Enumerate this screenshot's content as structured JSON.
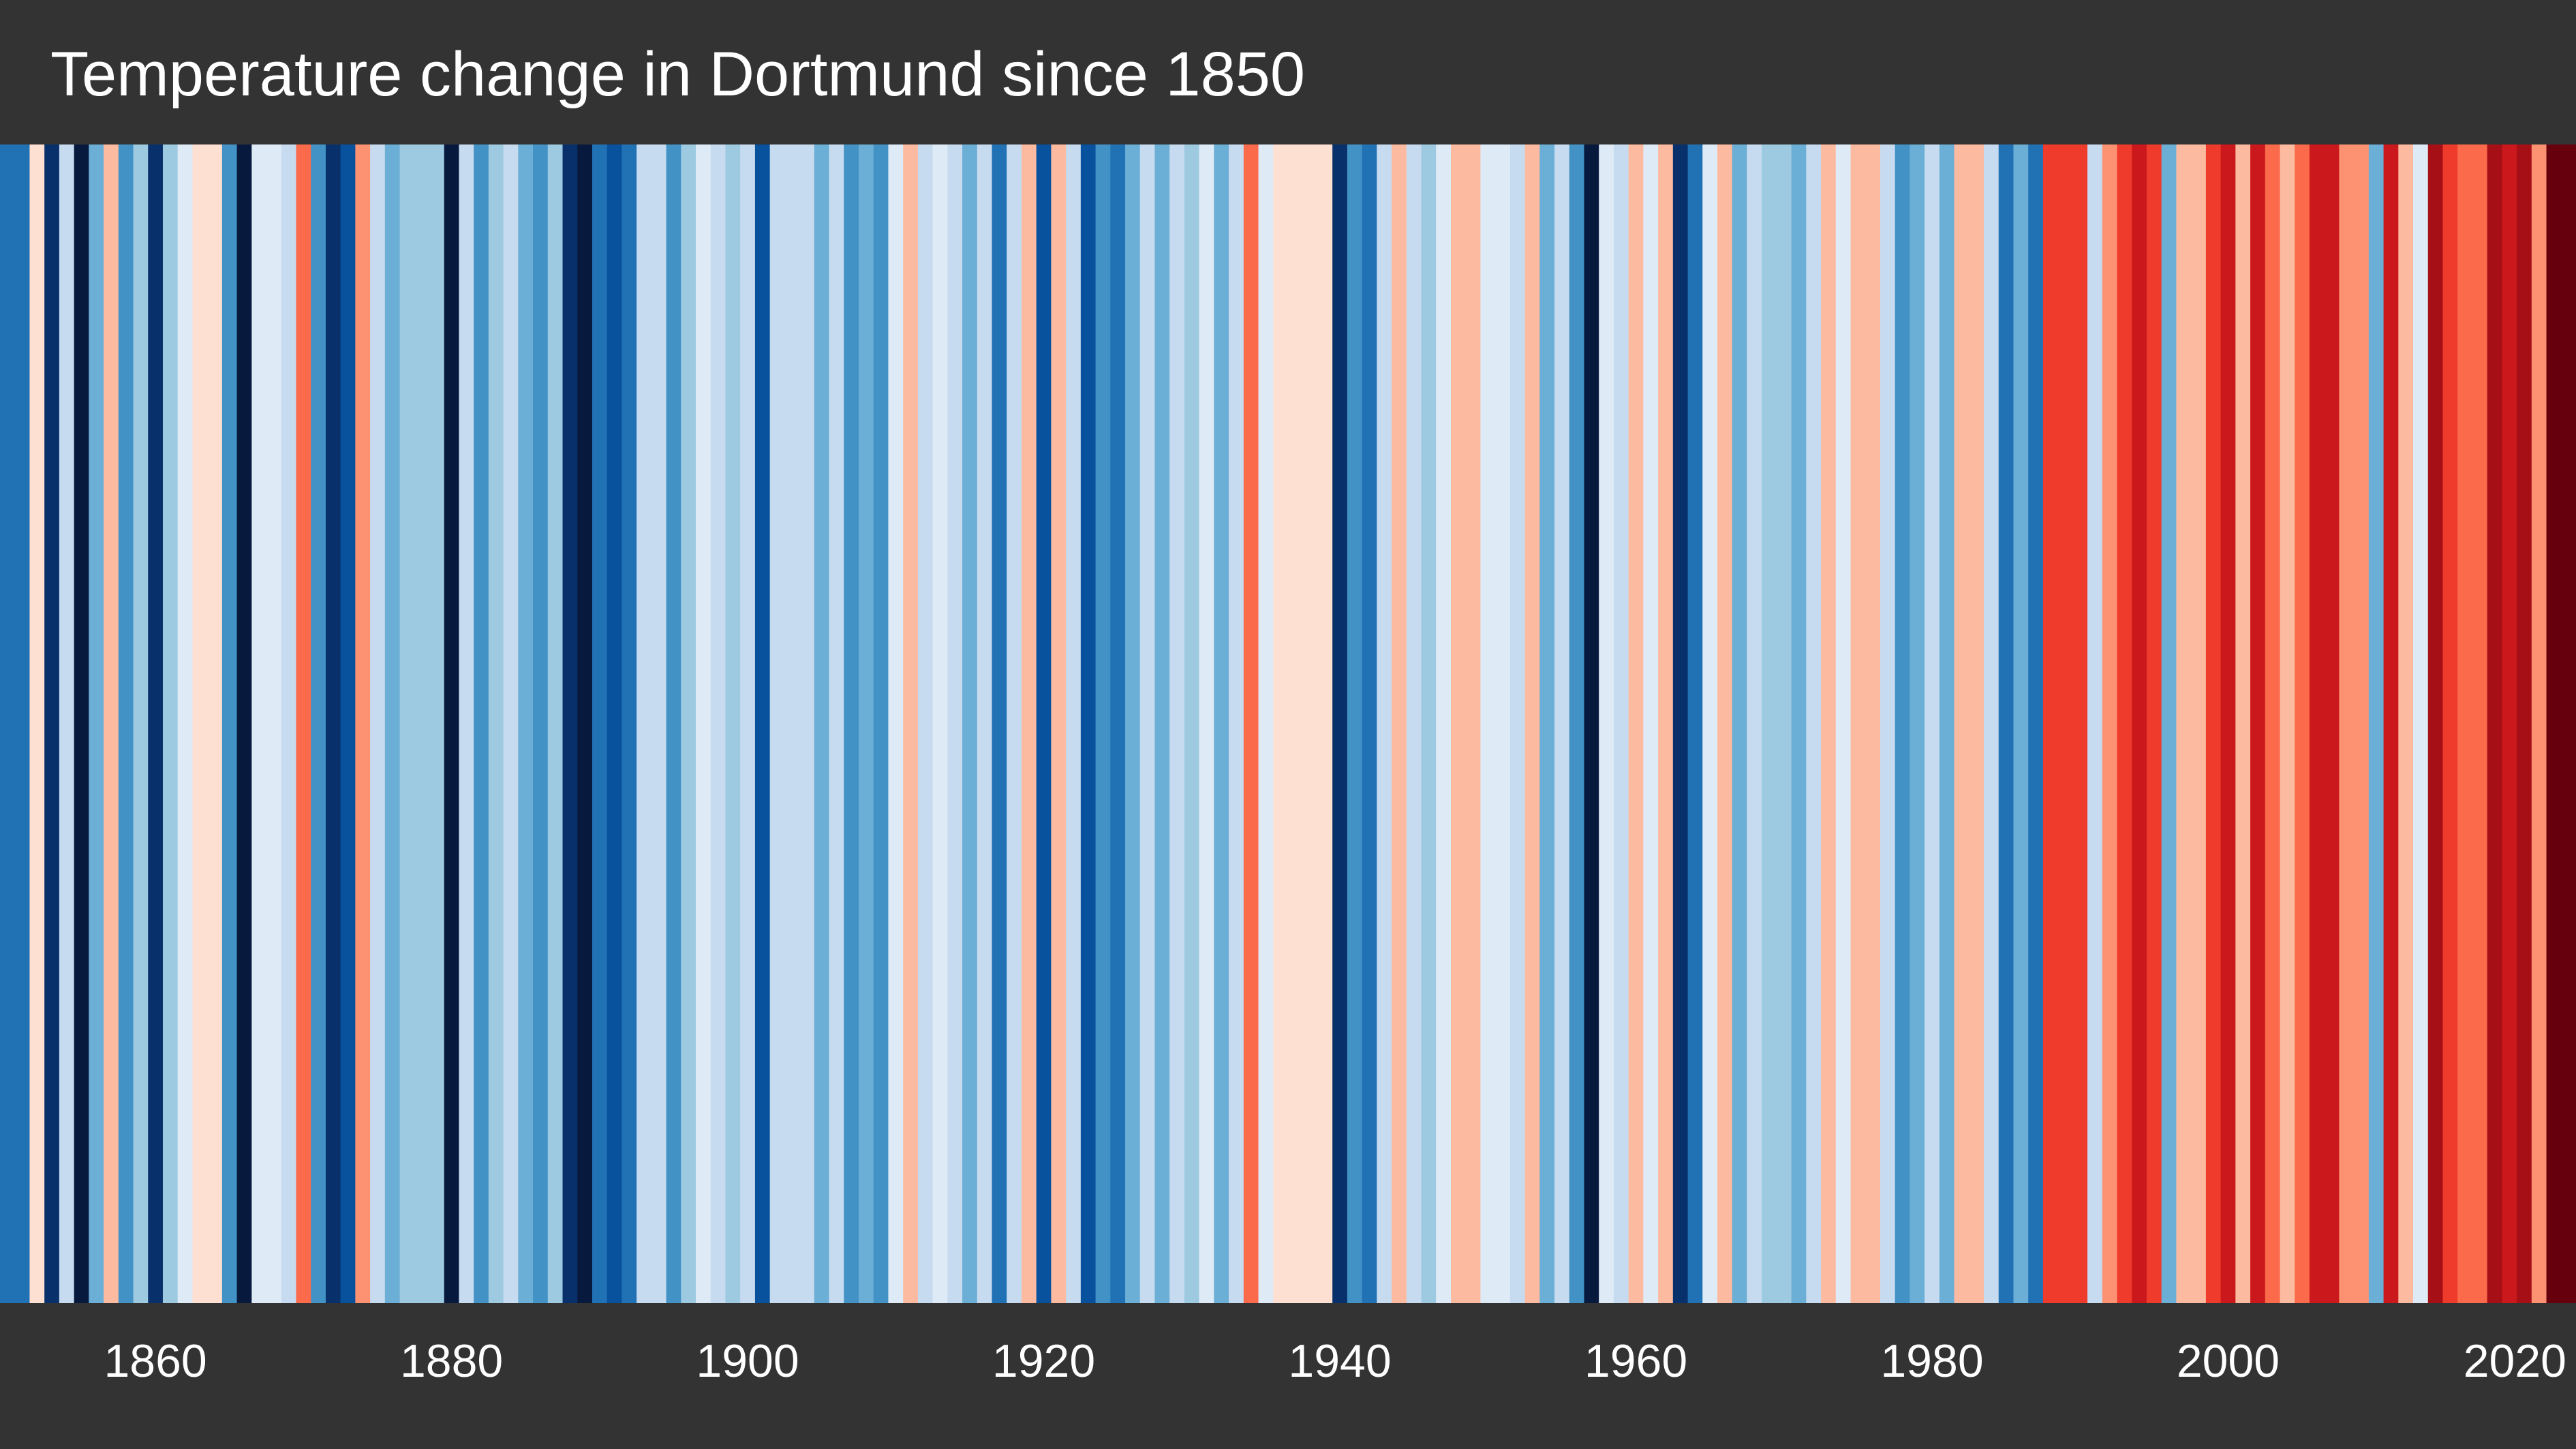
{
  "chart_data": {
    "type": "heatmap",
    "title": "Temperature change in Dortmund since 1850",
    "xlabel": "",
    "ylabel": "",
    "x_range": [
      1850,
      2023
    ],
    "grid": false,
    "legend": "none",
    "colors": {
      "background": "#333333",
      "title_text": "#ffffff",
      "tick_text": "#ffffff"
    },
    "ticks": [
      "1860",
      "1880",
      "1900",
      "1920",
      "1940",
      "1960",
      "1980",
      "2000",
      "2020"
    ],
    "stripes": [
      {
        "year": 1850,
        "color": "#2171b5"
      },
      {
        "year": 1851,
        "color": "#2171b5"
      },
      {
        "year": 1852,
        "color": "#fee0d2"
      },
      {
        "year": 1853,
        "color": "#08306b"
      },
      {
        "year": 1854,
        "color": "#c6dbef"
      },
      {
        "year": 1855,
        "color": "#08193e"
      },
      {
        "year": 1856,
        "color": "#6baed6"
      },
      {
        "year": 1857,
        "color": "#fcbba1"
      },
      {
        "year": 1858,
        "color": "#4292c6"
      },
      {
        "year": 1859,
        "color": "#9ecae1"
      },
      {
        "year": 1860,
        "color": "#08306b"
      },
      {
        "year": 1861,
        "color": "#9ecae1"
      },
      {
        "year": 1862,
        "color": "#deebf7"
      },
      {
        "year": 1863,
        "color": "#fee0d2"
      },
      {
        "year": 1864,
        "color": "#fee0d2"
      },
      {
        "year": 1865,
        "color": "#4292c6"
      },
      {
        "year": 1866,
        "color": "#08193e"
      },
      {
        "year": 1867,
        "color": "#deebf7"
      },
      {
        "year": 1868,
        "color": "#deebf7"
      },
      {
        "year": 1869,
        "color": "#c6dbef"
      },
      {
        "year": 1870,
        "color": "#fb6a4a"
      },
      {
        "year": 1871,
        "color": "#4292c6"
      },
      {
        "year": 1872,
        "color": "#08306b"
      },
      {
        "year": 1873,
        "color": "#08519c"
      },
      {
        "year": 1874,
        "color": "#fc9272"
      },
      {
        "year": 1875,
        "color": "#c6dbef"
      },
      {
        "year": 1876,
        "color": "#6baed6"
      },
      {
        "year": 1877,
        "color": "#9ecae1"
      },
      {
        "year": 1878,
        "color": "#9ecae1"
      },
      {
        "year": 1879,
        "color": "#9ecae1"
      },
      {
        "year": 1880,
        "color": "#08193e"
      },
      {
        "year": 1881,
        "color": "#c6dbef"
      },
      {
        "year": 1882,
        "color": "#4292c6"
      },
      {
        "year": 1883,
        "color": "#9ecae1"
      },
      {
        "year": 1884,
        "color": "#c6dbef"
      },
      {
        "year": 1885,
        "color": "#6baed6"
      },
      {
        "year": 1886,
        "color": "#4292c6"
      },
      {
        "year": 1887,
        "color": "#9ecae1"
      },
      {
        "year": 1888,
        "color": "#08306b"
      },
      {
        "year": 1889,
        "color": "#08193e"
      },
      {
        "year": 1890,
        "color": "#2171b5"
      },
      {
        "year": 1891,
        "color": "#08519c"
      },
      {
        "year": 1892,
        "color": "#2171b5"
      },
      {
        "year": 1893,
        "color": "#c6dbef"
      },
      {
        "year": 1894,
        "color": "#c6dbef"
      },
      {
        "year": 1895,
        "color": "#4292c6"
      },
      {
        "year": 1896,
        "color": "#9ecae1"
      },
      {
        "year": 1897,
        "color": "#deebf7"
      },
      {
        "year": 1898,
        "color": "#c6dbef"
      },
      {
        "year": 1899,
        "color": "#9ecae1"
      },
      {
        "year": 1900,
        "color": "#c6dbef"
      },
      {
        "year": 1901,
        "color": "#08519c"
      },
      {
        "year": 1902,
        "color": "#c6dbef"
      },
      {
        "year": 1903,
        "color": "#c6dbef"
      },
      {
        "year": 1904,
        "color": "#c6dbef"
      },
      {
        "year": 1905,
        "color": "#6baed6"
      },
      {
        "year": 1906,
        "color": "#c6dbef"
      },
      {
        "year": 1907,
        "color": "#4292c6"
      },
      {
        "year": 1908,
        "color": "#6baed6"
      },
      {
        "year": 1909,
        "color": "#4292c6"
      },
      {
        "year": 1910,
        "color": "#deebf7"
      },
      {
        "year": 1911,
        "color": "#fcbba1"
      },
      {
        "year": 1912,
        "color": "#c6dbef"
      },
      {
        "year": 1913,
        "color": "#deebf7"
      },
      {
        "year": 1914,
        "color": "#c6dbef"
      },
      {
        "year": 1915,
        "color": "#6baed6"
      },
      {
        "year": 1916,
        "color": "#c6dbef"
      },
      {
        "year": 1917,
        "color": "#2171b5"
      },
      {
        "year": 1918,
        "color": "#c6dbef"
      },
      {
        "year": 1919,
        "color": "#fcbba1"
      },
      {
        "year": 1920,
        "color": "#08519c"
      },
      {
        "year": 1921,
        "color": "#fcbba1"
      },
      {
        "year": 1922,
        "color": "#c6dbef"
      },
      {
        "year": 1923,
        "color": "#08519c"
      },
      {
        "year": 1924,
        "color": "#4292c6"
      },
      {
        "year": 1925,
        "color": "#2171b5"
      },
      {
        "year": 1926,
        "color": "#6baed6"
      },
      {
        "year": 1927,
        "color": "#c6dbef"
      },
      {
        "year": 1928,
        "color": "#6baed6"
      },
      {
        "year": 1929,
        "color": "#c6dbef"
      },
      {
        "year": 1930,
        "color": "#9ecae1"
      },
      {
        "year": 1931,
        "color": "#deebf7"
      },
      {
        "year": 1932,
        "color": "#6baed6"
      },
      {
        "year": 1933,
        "color": "#c6dbef"
      },
      {
        "year": 1934,
        "color": "#fb6a4a"
      },
      {
        "year": 1935,
        "color": "#deebf7"
      },
      {
        "year": 1936,
        "color": "#fee0d2"
      },
      {
        "year": 1937,
        "color": "#fee0d2"
      },
      {
        "year": 1938,
        "color": "#fee0d2"
      },
      {
        "year": 1939,
        "color": "#fee0d2"
      },
      {
        "year": 1940,
        "color": "#08306b"
      },
      {
        "year": 1941,
        "color": "#4292c6"
      },
      {
        "year": 1942,
        "color": "#2171b5"
      },
      {
        "year": 1943,
        "color": "#c6dbef"
      },
      {
        "year": 1944,
        "color": "#fcbba1"
      },
      {
        "year": 1945,
        "color": "#c6dbef"
      },
      {
        "year": 1946,
        "color": "#9ecae1"
      },
      {
        "year": 1947,
        "color": "#deebf7"
      },
      {
        "year": 1948,
        "color": "#fcbba1"
      },
      {
        "year": 1949,
        "color": "#fcbba1"
      },
      {
        "year": 1950,
        "color": "#deebf7"
      },
      {
        "year": 1951,
        "color": "#deebf7"
      },
      {
        "year": 1952,
        "color": "#c6dbef"
      },
      {
        "year": 1953,
        "color": "#fcbba1"
      },
      {
        "year": 1954,
        "color": "#6baed6"
      },
      {
        "year": 1955,
        "color": "#c6dbef"
      },
      {
        "year": 1956,
        "color": "#4292c6"
      },
      {
        "year": 1957,
        "color": "#08193e"
      },
      {
        "year": 1958,
        "color": "#deebf7"
      },
      {
        "year": 1959,
        "color": "#c6dbef"
      },
      {
        "year": 1960,
        "color": "#fcbba1"
      },
      {
        "year": 1961,
        "color": "#deebf7"
      },
      {
        "year": 1962,
        "color": "#fcbba1"
      },
      {
        "year": 1963,
        "color": "#08306b"
      },
      {
        "year": 1964,
        "color": "#2171b5"
      },
      {
        "year": 1965,
        "color": "#deebf7"
      },
      {
        "year": 1966,
        "color": "#fcbba1"
      },
      {
        "year": 1967,
        "color": "#6baed6"
      },
      {
        "year": 1968,
        "color": "#c6dbef"
      },
      {
        "year": 1969,
        "color": "#9ecae1"
      },
      {
        "year": 1970,
        "color": "#9ecae1"
      },
      {
        "year": 1971,
        "color": "#6baed6"
      },
      {
        "year": 1972,
        "color": "#c6dbef"
      },
      {
        "year": 1973,
        "color": "#fcbba1"
      },
      {
        "year": 1974,
        "color": "#deebf7"
      },
      {
        "year": 1975,
        "color": "#fcbba1"
      },
      {
        "year": 1976,
        "color": "#fcbba1"
      },
      {
        "year": 1977,
        "color": "#c6dbef"
      },
      {
        "year": 1978,
        "color": "#4292c6"
      },
      {
        "year": 1979,
        "color": "#6baed6"
      },
      {
        "year": 1980,
        "color": "#c6dbef"
      },
      {
        "year": 1981,
        "color": "#6baed6"
      },
      {
        "year": 1982,
        "color": "#fcbba1"
      },
      {
        "year": 1983,
        "color": "#fcbba1"
      },
      {
        "year": 1984,
        "color": "#c6dbef"
      },
      {
        "year": 1985,
        "color": "#2171b5"
      },
      {
        "year": 1986,
        "color": "#6baed6"
      },
      {
        "year": 1987,
        "color": "#2171b5"
      },
      {
        "year": 1988,
        "color": "#ef3b2c"
      },
      {
        "year": 1989,
        "color": "#ef3b2c"
      },
      {
        "year": 1990,
        "color": "#ef3b2c"
      },
      {
        "year": 1991,
        "color": "#c6dbef"
      },
      {
        "year": 1992,
        "color": "#fc9272"
      },
      {
        "year": 1993,
        "color": "#ef3b2c"
      },
      {
        "year": 1994,
        "color": "#cb181d"
      },
      {
        "year": 1995,
        "color": "#ef3b2c"
      },
      {
        "year": 1996,
        "color": "#6baed6"
      },
      {
        "year": 1997,
        "color": "#fcbba1"
      },
      {
        "year": 1998,
        "color": "#fcbba1"
      },
      {
        "year": 1999,
        "color": "#ef3b2c"
      },
      {
        "year": 2000,
        "color": "#cb181d"
      },
      {
        "year": 2001,
        "color": "#fcbba1"
      },
      {
        "year": 2002,
        "color": "#cb181d"
      },
      {
        "year": 2003,
        "color": "#fb6a4a"
      },
      {
        "year": 2004,
        "color": "#fcbba1"
      },
      {
        "year": 2005,
        "color": "#fb6a4a"
      },
      {
        "year": 2006,
        "color": "#cb181d"
      },
      {
        "year": 2007,
        "color": "#cb181d"
      },
      {
        "year": 2008,
        "color": "#fc9272"
      },
      {
        "year": 2009,
        "color": "#fc9272"
      },
      {
        "year": 2010,
        "color": "#6baed6"
      },
      {
        "year": 2011,
        "color": "#cb181d"
      },
      {
        "year": 2012,
        "color": "#fcbba1"
      },
      {
        "year": 2013,
        "color": "#deebf7"
      },
      {
        "year": 2014,
        "color": "#a50f15"
      },
      {
        "year": 2015,
        "color": "#ef3b2c"
      },
      {
        "year": 2016,
        "color": "#fb6a4a"
      },
      {
        "year": 2017,
        "color": "#fb6a4a"
      },
      {
        "year": 2018,
        "color": "#a50f15"
      },
      {
        "year": 2019,
        "color": "#cb181d"
      },
      {
        "year": 2020,
        "color": "#a50f15"
      },
      {
        "year": 2021,
        "color": "#fc9272"
      },
      {
        "year": 2022,
        "color": "#67000d"
      },
      {
        "year": 2023,
        "color": "#67000d"
      }
    ]
  }
}
